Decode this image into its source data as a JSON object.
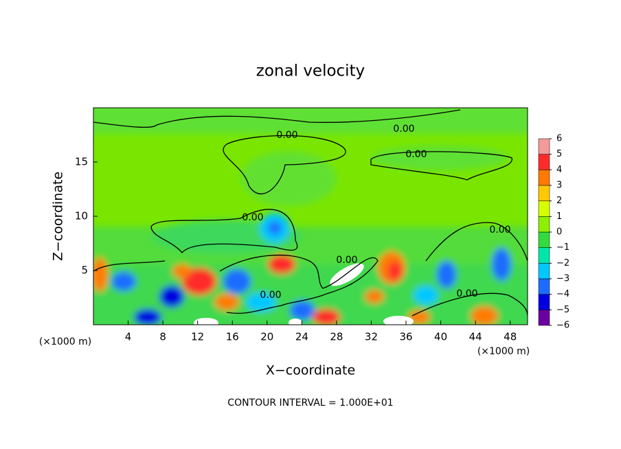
{
  "chart_data": {
    "type": "contour",
    "title": "zonal velocity",
    "x_label": "X−coordinate",
    "y_label": "Z−coordinate",
    "x_unit": "(×1000 m)",
    "footer": "CONTOUR INTERVAL = 1.000E+01",
    "contour_label": "0.00",
    "xlim": [
      0,
      50
    ],
    "ylim": [
      0,
      20
    ],
    "xticks": [
      4,
      8,
      12,
      16,
      20,
      24,
      28,
      32,
      36,
      40,
      44,
      48
    ],
    "yticks": [
      5,
      10,
      15
    ],
    "colorbar": {
      "levels": [
        {
          "value": -6,
          "label": "−6"
        },
        {
          "value": -5,
          "label": "−5"
        },
        {
          "value": -4,
          "label": "−4"
        },
        {
          "value": -3,
          "label": "−3"
        },
        {
          "value": -2,
          "label": "−2"
        },
        {
          "value": -1,
          "label": "−1"
        },
        0,
        1,
        2,
        3,
        4,
        5,
        6
      ],
      "colors": [
        "#6a00a0",
        "#0000e0",
        "#1e6cff",
        "#00c8ff",
        "#00e6a8",
        "#32dc3c",
        "#8cf000",
        "#d6ff00",
        "#ffc800",
        "#ff7a00",
        "#ff2a2a",
        "#f49a9a"
      ]
    }
  }
}
